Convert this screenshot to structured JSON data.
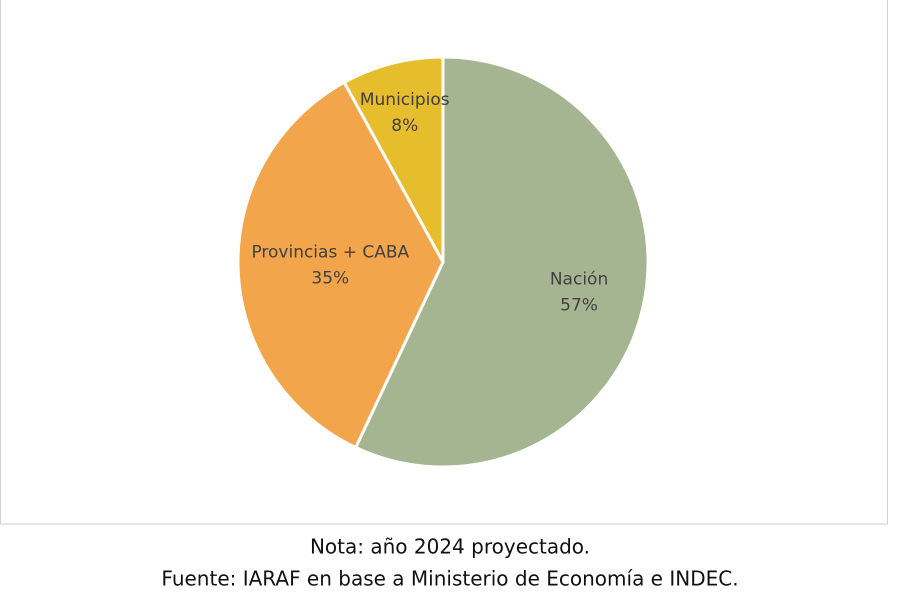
{
  "chart_data": {
    "type": "pie",
    "categories": [
      "Nación",
      "Provincias + CABA",
      "Municipios"
    ],
    "values": [
      57,
      35,
      8
    ],
    "value_labels": [
      "57%",
      "35%",
      "8%"
    ],
    "colors": [
      "#a5b592",
      "#f2a54a",
      "#e6bd2c"
    ],
    "note": "Nota: año 2024 proyectado.",
    "source": "Fuente: IARAF en base a Ministerio de Economía e INDEC."
  }
}
